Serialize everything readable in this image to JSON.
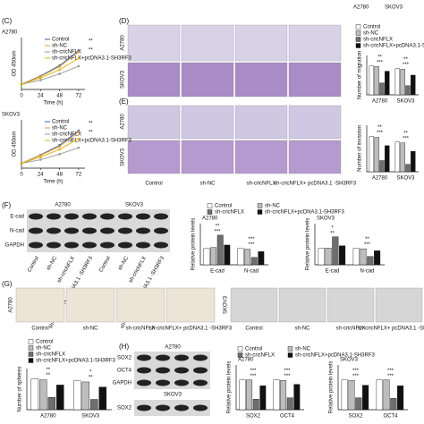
{
  "figure": {
    "top_labels": [
      "A2780",
      "SKOV3"
    ],
    "panel_letters": [
      "(C)",
      "(D)",
      "(E)",
      "(F)",
      "(G)",
      "(H)"
    ],
    "transwell_rows": [
      "A2780",
      "SKOV3"
    ],
    "invasion_rows": [
      "A2780",
      "SKOV3"
    ],
    "transwell_columns": [
      "Control",
      "sh-NC",
      "sh-cricNFLX",
      "sh-cricNFLX+ pcDNA3.1 -SH3RF3"
    ],
    "blot_f": {
      "cell_lines": [
        "A2780",
        "SKOV3"
      ],
      "proteins": [
        "E-cad",
        "N-cad",
        "GAPDH"
      ],
      "lanes": [
        "Control",
        "sh-NC",
        "sh-cricNFLX",
        "sh-cricNFLX+ pcDNA3.1 -SH3RF3",
        "Control",
        "sh-NC",
        "sh-cricNFLX",
        "sh-cricNFLX+ pcDNA3.1 -SH3RF3"
      ]
    },
    "spheres": {
      "rows": [
        "A2780",
        "SKOV3"
      ],
      "columns_a2780": [
        "Control",
        "sh-NC",
        "sh-cricNFLX",
        "sh-cricNFLX+ pcDNA3.1 -SH3RF3"
      ],
      "columns_skov3": [
        "Control",
        "sh-NC",
        "sh-cricNFLX",
        "sh-cricNFLX+ pcDNA3.1 -SH3RF3"
      ]
    },
    "blot_h": {
      "cell_lines": [
        "A2780",
        "SKOV3"
      ],
      "proteins": [
        "SOX2",
        "OCT4",
        "GAPDH",
        "SOX2"
      ]
    }
  },
  "chart_data": [
    {
      "type": "line",
      "title": "A2780",
      "x_label": "Time (h)",
      "y_label": "OD 450nm",
      "x": [
        0,
        24,
        48,
        72
      ],
      "xlim": [
        0,
        80
      ],
      "xticks": [
        0,
        24,
        48,
        72
      ],
      "ylim": [
        0,
        2
      ],
      "legend": true,
      "series": [
        {
          "name": "Control",
          "color": "#2f5fb3",
          "values": [
            0.2,
            0.52,
            0.92,
            1.5
          ]
        },
        {
          "name": "sh-NC",
          "color": "#e89a2c",
          "values": [
            0.2,
            0.5,
            0.88,
            1.45
          ]
        },
        {
          "name": "sh-cricNFLX",
          "color": "#9a9a9a",
          "values": [
            0.2,
            0.36,
            0.6,
            0.9
          ]
        },
        {
          "name": "sh-cricNFLX+pcDNA3.1-SH3RF3",
          "color": "#d8b400",
          "values": [
            0.2,
            0.45,
            0.76,
            1.2
          ]
        }
      ],
      "annotations": [
        "**",
        "**"
      ]
    },
    {
      "type": "line",
      "title": "SKOV3",
      "x_label": "Time (h)",
      "y_label": "OD 450nm",
      "x": [
        0,
        24,
        48,
        72
      ],
      "xlim": [
        0,
        80
      ],
      "xticks": [
        0,
        24,
        48,
        72
      ],
      "ylim": [
        0,
        2
      ],
      "legend": true,
      "series": [
        {
          "name": "Control",
          "color": "#2f5fb3",
          "values": [
            0.2,
            0.55,
            0.95,
            1.55
          ]
        },
        {
          "name": "sh-NC",
          "color": "#e89a2c",
          "values": [
            0.2,
            0.53,
            0.9,
            1.5
          ]
        },
        {
          "name": "sh-cricNFLX",
          "color": "#9a9a9a",
          "values": [
            0.2,
            0.35,
            0.58,
            0.85
          ]
        },
        {
          "name": "sh-cricNFLX+pcDNA3.1-SH3RF3",
          "color": "#d8b400",
          "values": [
            0.2,
            0.46,
            0.78,
            1.22
          ]
        }
      ],
      "annotations": [
        "**",
        "**"
      ]
    },
    {
      "type": "bar",
      "y_label": "Number of migration",
      "categories": [
        "A2780",
        "SKOV3"
      ],
      "ylim": [
        0,
        300
      ],
      "legend": true,
      "series": [
        {
          "name": "Control",
          "color": "#ffffff",
          "values": [
            220,
            200
          ]
        },
        {
          "name": "sh-NC",
          "color": "#bdbdbd",
          "values": [
            215,
            195
          ]
        },
        {
          "name": "sh-cricNFLX",
          "color": "#6e6e6e",
          "values": [
            90,
            70
          ]
        },
        {
          "name": "sh-cricNFLX+pcDNA3.1-SH3RF3",
          "color": "#111111",
          "values": [
            180,
            150
          ]
        }
      ],
      "annotations": [
        "***",
        "**",
        "***",
        "**"
      ]
    },
    {
      "type": "bar",
      "y_label": "Number of invasion",
      "categories": [
        "A2780",
        "SKOV3"
      ],
      "ylim": [
        0,
        250
      ],
      "legend": false,
      "series": [
        {
          "name": "Control",
          "color": "#ffffff",
          "values": [
            190,
            160
          ]
        },
        {
          "name": "sh-NC",
          "color": "#bdbdbd",
          "values": [
            185,
            155
          ]
        },
        {
          "name": "sh-cricNFLX",
          "color": "#6e6e6e",
          "values": [
            60,
            40
          ]
        },
        {
          "name": "sh-cricNFLX+pcDNA3.1-SH3RF3",
          "color": "#111111",
          "values": [
            140,
            110
          ]
        }
      ],
      "annotations": [
        "***",
        "**",
        "***",
        "**"
      ]
    },
    {
      "type": "bar",
      "title": "A2780",
      "y_label": "Relative protein levels",
      "categories": [
        "E-cad",
        "N-cad"
      ],
      "ylim": [
        0,
        2.5
      ],
      "legend": true,
      "series": [
        {
          "name": "Control",
          "color": "#ffffff",
          "values": [
            1.0,
            1.0
          ]
        },
        {
          "name": "sh-NC",
          "color": "#bdbdbd",
          "values": [
            1.05,
            0.95
          ]
        },
        {
          "name": "sh-cricNFLX",
          "color": "#6e6e6e",
          "values": [
            1.8,
            0.45
          ]
        },
        {
          "name": "sh-cricNFLX+pcDNA3.1-SH3RF3",
          "color": "#111111",
          "values": [
            1.2,
            0.8
          ]
        }
      ],
      "annotations": [
        "***",
        "**",
        "***",
        "***"
      ]
    },
    {
      "type": "bar",
      "title": "SKOV3",
      "y_label": "Relative protein levels",
      "categories": [
        "E-cad",
        "N-cad"
      ],
      "ylim": [
        0,
        2.5
      ],
      "legend": false,
      "series": [
        {
          "name": "Control",
          "color": "#ffffff",
          "values": [
            1.0,
            1.0
          ]
        },
        {
          "name": "sh-NC",
          "color": "#bdbdbd",
          "values": [
            1.02,
            0.97
          ]
        },
        {
          "name": "sh-cricNFLX",
          "color": "#6e6e6e",
          "values": [
            1.7,
            0.5
          ]
        },
        {
          "name": "sh-cricNFLX+pcDNA3.1-SH3RF3",
          "color": "#111111",
          "values": [
            1.15,
            0.85
          ]
        }
      ],
      "annotations": [
        "**",
        "*",
        "***",
        "**"
      ]
    },
    {
      "type": "bar",
      "y_label": "Number of spheres",
      "categories": [
        "A2780",
        "SKOV3"
      ],
      "ylim": [
        0,
        40
      ],
      "legend": true,
      "series": [
        {
          "name": "Control",
          "color": "#ffffff",
          "values": [
            30,
            28
          ]
        },
        {
          "name": "sh-NC",
          "color": "#bdbdbd",
          "values": [
            29,
            27
          ]
        },
        {
          "name": "sh-cricNFLX",
          "color": "#6e6e6e",
          "values": [
            12,
            10
          ]
        },
        {
          "name": "sh-cricNFLX+pcDNA3.1-SH3RF3",
          "color": "#111111",
          "values": [
            24,
            22
          ]
        }
      ],
      "annotations": [
        "**",
        "**",
        "**",
        "*"
      ]
    },
    {
      "type": "bar",
      "title": "A2780",
      "y_label": "Relative protein levels",
      "categories": [
        "SOX2",
        "OCT4"
      ],
      "ylim": [
        0,
        1.5
      ],
      "legend": true,
      "series": [
        {
          "name": "Control",
          "color": "#ffffff",
          "values": [
            1.0,
            1.0
          ]
        },
        {
          "name": "sh-NC",
          "color": "#bdbdbd",
          "values": [
            1.0,
            0.98
          ]
        },
        {
          "name": "sh-cricNFLX",
          "color": "#6e6e6e",
          "values": [
            0.35,
            0.4
          ]
        },
        {
          "name": "sh-cricNFLX+pcDNA3.1-SH3RF3",
          "color": "#111111",
          "values": [
            0.8,
            0.85
          ]
        }
      ],
      "annotations": [
        "***",
        "***",
        "***",
        "***"
      ]
    },
    {
      "type": "bar",
      "title": "SKOV3",
      "y_label": "Relative protein levels",
      "categories": [
        "SOX2",
        "OCT4"
      ],
      "ylim": [
        0,
        1.5
      ],
      "legend": false,
      "series": [
        {
          "name": "Control",
          "color": "#ffffff",
          "values": [
            1.0,
            1.0
          ]
        },
        {
          "name": "sh-NC",
          "color": "#bdbdbd",
          "values": [
            0.98,
            1.0
          ]
        },
        {
          "name": "sh-cricNFLX",
          "color": "#6e6e6e",
          "values": [
            0.4,
            0.38
          ]
        },
        {
          "name": "sh-cricNFLX+pcDNA3.1-SH3RF3",
          "color": "#111111",
          "values": [
            0.82,
            0.8
          ]
        }
      ],
      "annotations": [
        "***",
        "***",
        "***",
        "***"
      ]
    }
  ]
}
